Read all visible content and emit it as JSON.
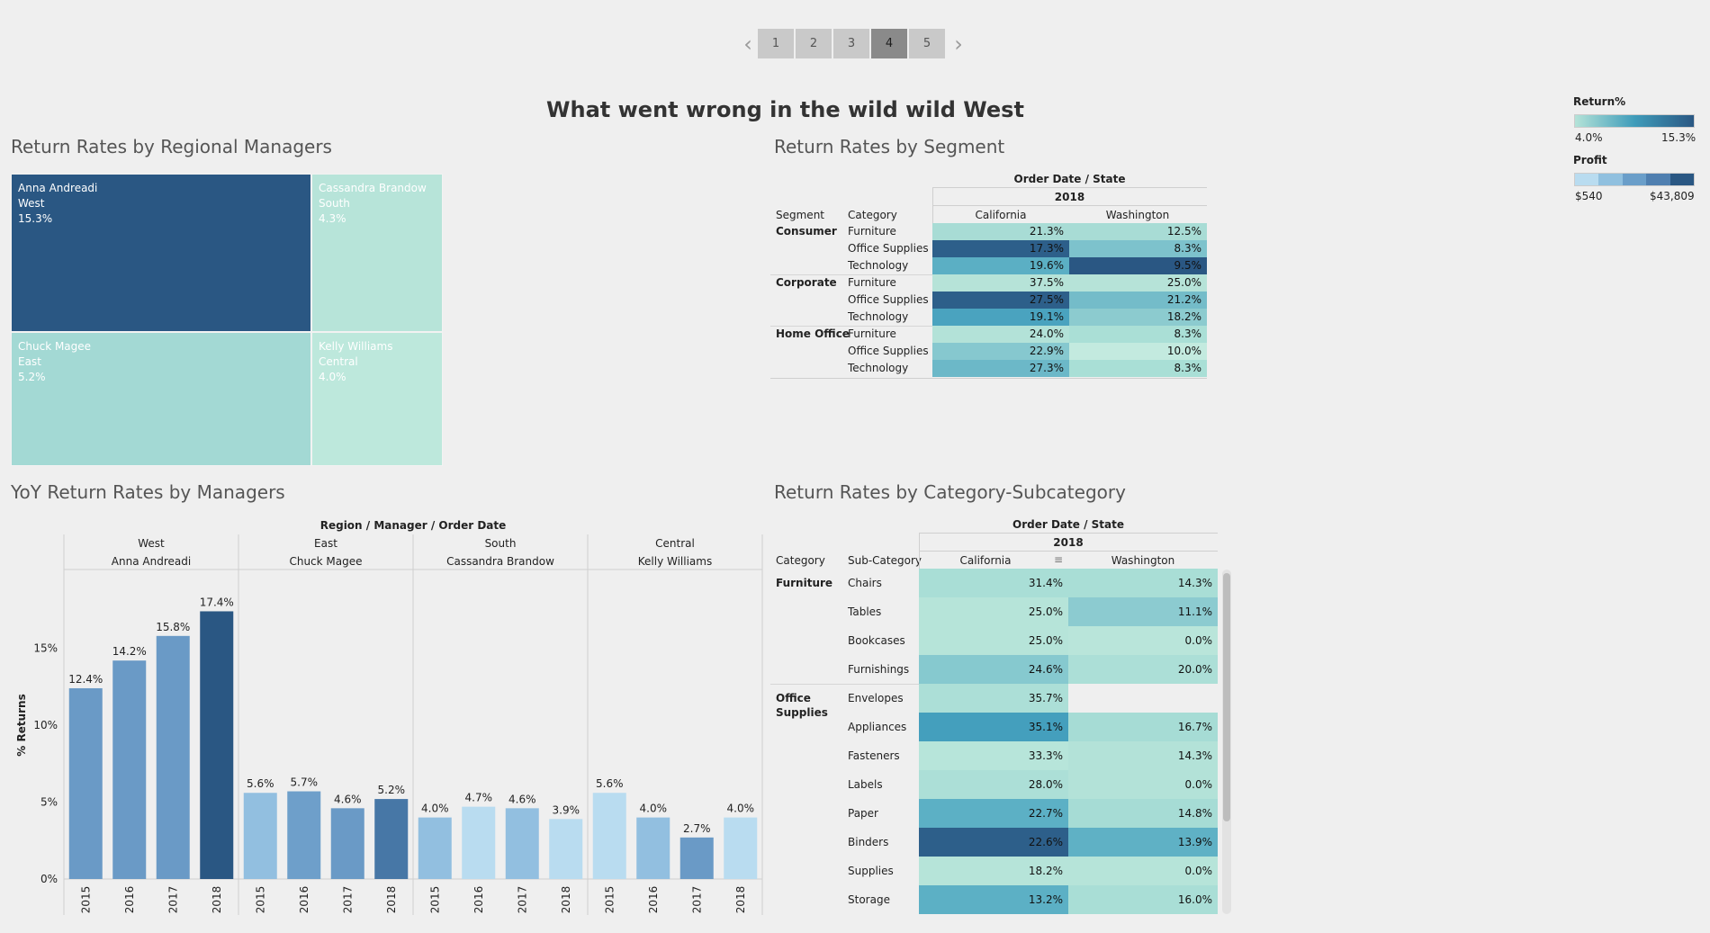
{
  "pager": {
    "pages": [
      "1",
      "2",
      "3",
      "4",
      "5"
    ],
    "active": "4",
    "prev_icon": "chevron-left-icon",
    "next_icon": "chevron-right-icon"
  },
  "dashboard_title": "What went wrong in the wild wild West",
  "sections": {
    "managers": "Return Rates by Regional Managers",
    "segment": "Return Rates by Segment",
    "yoy": "YoY Return Rates by Managers",
    "subcat": "Return Rates by Category-Subcategory"
  },
  "legend": {
    "return_title": "Return%",
    "return_min": "4.0%",
    "return_max": "15.3%",
    "profit_title": "Profit",
    "profit_min": "$540",
    "profit_max": "$43,809",
    "colors": {
      "low": "#b4e3d8",
      "high": "#2a5783",
      "profit_steps": [
        "#b9dcf0",
        "#90c0df",
        "#6a9ec9",
        "#4f7fb0",
        "#2a5783"
      ]
    }
  },
  "treemap": [
    {
      "name": "Anna Andreadi",
      "region": "West",
      "rate": "15.3%",
      "color": "#2a5783",
      "text": "#ffffff"
    },
    {
      "name": "Cassandra Brandow",
      "region": "South",
      "rate": "4.3%",
      "color": "#b7e4d9",
      "text": "#ffffff"
    },
    {
      "name": "Chuck Magee",
      "region": "East",
      "rate": "5.2%",
      "color": "#a3d9d4",
      "text": "#ffffff"
    },
    {
      "name": "Kelly Williams",
      "region": "Central",
      "rate": "4.0%",
      "color": "#bde8dc",
      "text": "#ffffff"
    }
  ],
  "segment_table": {
    "header_top": "Order Date / State",
    "header_year": "2018",
    "col_segment": "Segment",
    "col_category": "Category",
    "states": [
      "California",
      "Washington"
    ],
    "rows": [
      {
        "segment": "Consumer",
        "category": "Furniture",
        "ca": "21.3%",
        "wa": "12.5%",
        "ca_c": "#a8dcd5",
        "wa_c": "#a8dcd5"
      },
      {
        "segment": "",
        "category": "Office Supplies",
        "ca": "17.3%",
        "wa": "8.3%",
        "ca_c": "#2d5f8a",
        "wa_c": "#7dc2cc"
      },
      {
        "segment": "",
        "category": "Technology",
        "ca": "19.6%",
        "wa": "9.5%",
        "ca_c": "#5bafc4",
        "wa_c": "#2a5783"
      },
      {
        "segment": "Corporate",
        "category": "Furniture",
        "ca": "37.5%",
        "wa": "25.0%",
        "ca_c": "#b6e3d8",
        "wa_c": "#b6e3d8"
      },
      {
        "segment": "",
        "category": "Office Supplies",
        "ca": "27.5%",
        "wa": "21.2%",
        "ca_c": "#2d5f8a",
        "wa_c": "#74bcc9"
      },
      {
        "segment": "",
        "category": "Technology",
        "ca": "19.1%",
        "wa": "18.2%",
        "ca_c": "#4aa3bf",
        "wa_c": "#8ccbcf"
      },
      {
        "segment": "Home Office",
        "category": "Furniture",
        "ca": "24.0%",
        "wa": "8.3%",
        "ca_c": "#b3e2d8",
        "wa_c": "#aadfd6"
      },
      {
        "segment": "",
        "category": "Office Supplies",
        "ca": "22.9%",
        "wa": "10.0%",
        "ca_c": "#86c8cf",
        "wa_c": "#c3eadf"
      },
      {
        "segment": "",
        "category": "Technology",
        "ca": "27.3%",
        "wa": "8.3%",
        "ca_c": "#6cb8c8",
        "wa_c": "#a9dfd6"
      }
    ]
  },
  "subcat_table": {
    "header_top": "Order Date / State",
    "header_year": "2018",
    "col_category": "Category",
    "col_subcategory": "Sub-Category",
    "states": [
      "California",
      "Washington"
    ],
    "sort_icon": "sort-descending-icon",
    "rows": [
      {
        "category": "Furniture",
        "sub": "Chairs",
        "ca": "31.4%",
        "wa": "14.3%",
        "ca_c": "#a9ded6",
        "wa_c": "#a9ded6"
      },
      {
        "category": "",
        "sub": "Tables",
        "ca": "25.0%",
        "wa": "11.1%",
        "ca_c": "#b6e4d9",
        "wa_c": "#8ccbd0"
      },
      {
        "category": "",
        "sub": "Bookcases",
        "ca": "25.0%",
        "wa": "0.0%",
        "ca_c": "#b6e4d9",
        "wa_c": "#b9e5da"
      },
      {
        "category": "",
        "sub": "Furnishings",
        "ca": "24.6%",
        "wa": "20.0%",
        "ca_c": "#86c9cf",
        "wa_c": "#acdfd7"
      },
      {
        "category": "Office Supplies",
        "sub": "Envelopes",
        "ca": "35.7%",
        "wa": "",
        "ca_c": "#acdfd7",
        "wa_c": "#efefef"
      },
      {
        "category": "",
        "sub": "Appliances",
        "ca": "35.1%",
        "wa": "16.7%",
        "ca_c": "#449fbd",
        "wa_c": "#a6dcd5"
      },
      {
        "category": "",
        "sub": "Fasteners",
        "ca": "33.3%",
        "wa": "14.3%",
        "ca_c": "#b7e5da",
        "wa_c": "#b3e2d8"
      },
      {
        "category": "",
        "sub": "Labels",
        "ca": "28.0%",
        "wa": "0.0%",
        "ca_c": "#acdfd7",
        "wa_c": "#b3e2d8"
      },
      {
        "category": "",
        "sub": "Paper",
        "ca": "22.7%",
        "wa": "14.8%",
        "ca_c": "#5cb0c5",
        "wa_c": "#a6dcd5"
      },
      {
        "category": "",
        "sub": "Binders",
        "ca": "22.6%",
        "wa": "13.9%",
        "ca_c": "#2d5f8a",
        "wa_c": "#5fb1c5"
      },
      {
        "category": "",
        "sub": "Supplies",
        "ca": "18.2%",
        "wa": "0.0%",
        "ca_c": "#b6e4d9",
        "wa_c": "#b6e4d9"
      },
      {
        "category": "",
        "sub": "Storage",
        "ca": "13.2%",
        "wa": "16.0%",
        "ca_c": "#5cb0c5",
        "wa_c": "#a9ded6"
      }
    ]
  },
  "chart_data": {
    "type": "bar",
    "title": "YoY Return Rates by Managers",
    "header": "Region / Manager / Order Date",
    "ylabel": "% Returns",
    "yticks": [
      "0%",
      "5%",
      "10%",
      "15%"
    ],
    "ylim": [
      0,
      0.2
    ],
    "groups": [
      {
        "region": "West",
        "manager": "Anna Andreadi",
        "years": [
          "2015",
          "2016",
          "2017",
          "2018"
        ],
        "values": [
          0.124,
          0.142,
          0.158,
          0.174
        ],
        "labels": [
          "12.4%",
          "14.2%",
          "15.8%",
          "17.4%"
        ],
        "colors": [
          "#6a9ac6",
          "#6a9ac6",
          "#6a9ac6",
          "#2a5783"
        ]
      },
      {
        "region": "East",
        "manager": "Chuck Magee",
        "years": [
          "2015",
          "2016",
          "2017",
          "2018"
        ],
        "values": [
          0.056,
          0.057,
          0.046,
          0.052
        ],
        "labels": [
          "5.6%",
          "5.7%",
          "4.6%",
          "5.2%"
        ],
        "colors": [
          "#92bfe0",
          "#6e9fca",
          "#6a9ac6",
          "#4777a6"
        ]
      },
      {
        "region": "South",
        "manager": "Cassandra Brandow",
        "years": [
          "2015",
          "2016",
          "2017",
          "2018"
        ],
        "values": [
          0.04,
          0.047,
          0.046,
          0.039
        ],
        "labels": [
          "4.0%",
          "4.7%",
          "4.6%",
          "3.9%"
        ],
        "colors": [
          "#92bfe0",
          "#b9dcf0",
          "#92bfe0",
          "#b9dcf0"
        ]
      },
      {
        "region": "Central",
        "manager": "Kelly Williams",
        "years": [
          "2015",
          "2016",
          "2017",
          "2018"
        ],
        "values": [
          0.056,
          0.04,
          0.027,
          0.04
        ],
        "labels": [
          "5.6%",
          "4.0%",
          "2.7%",
          "4.0%"
        ],
        "colors": [
          "#b9dcf0",
          "#92bfe0",
          "#6a9ac6",
          "#b9dcf0"
        ]
      }
    ]
  }
}
